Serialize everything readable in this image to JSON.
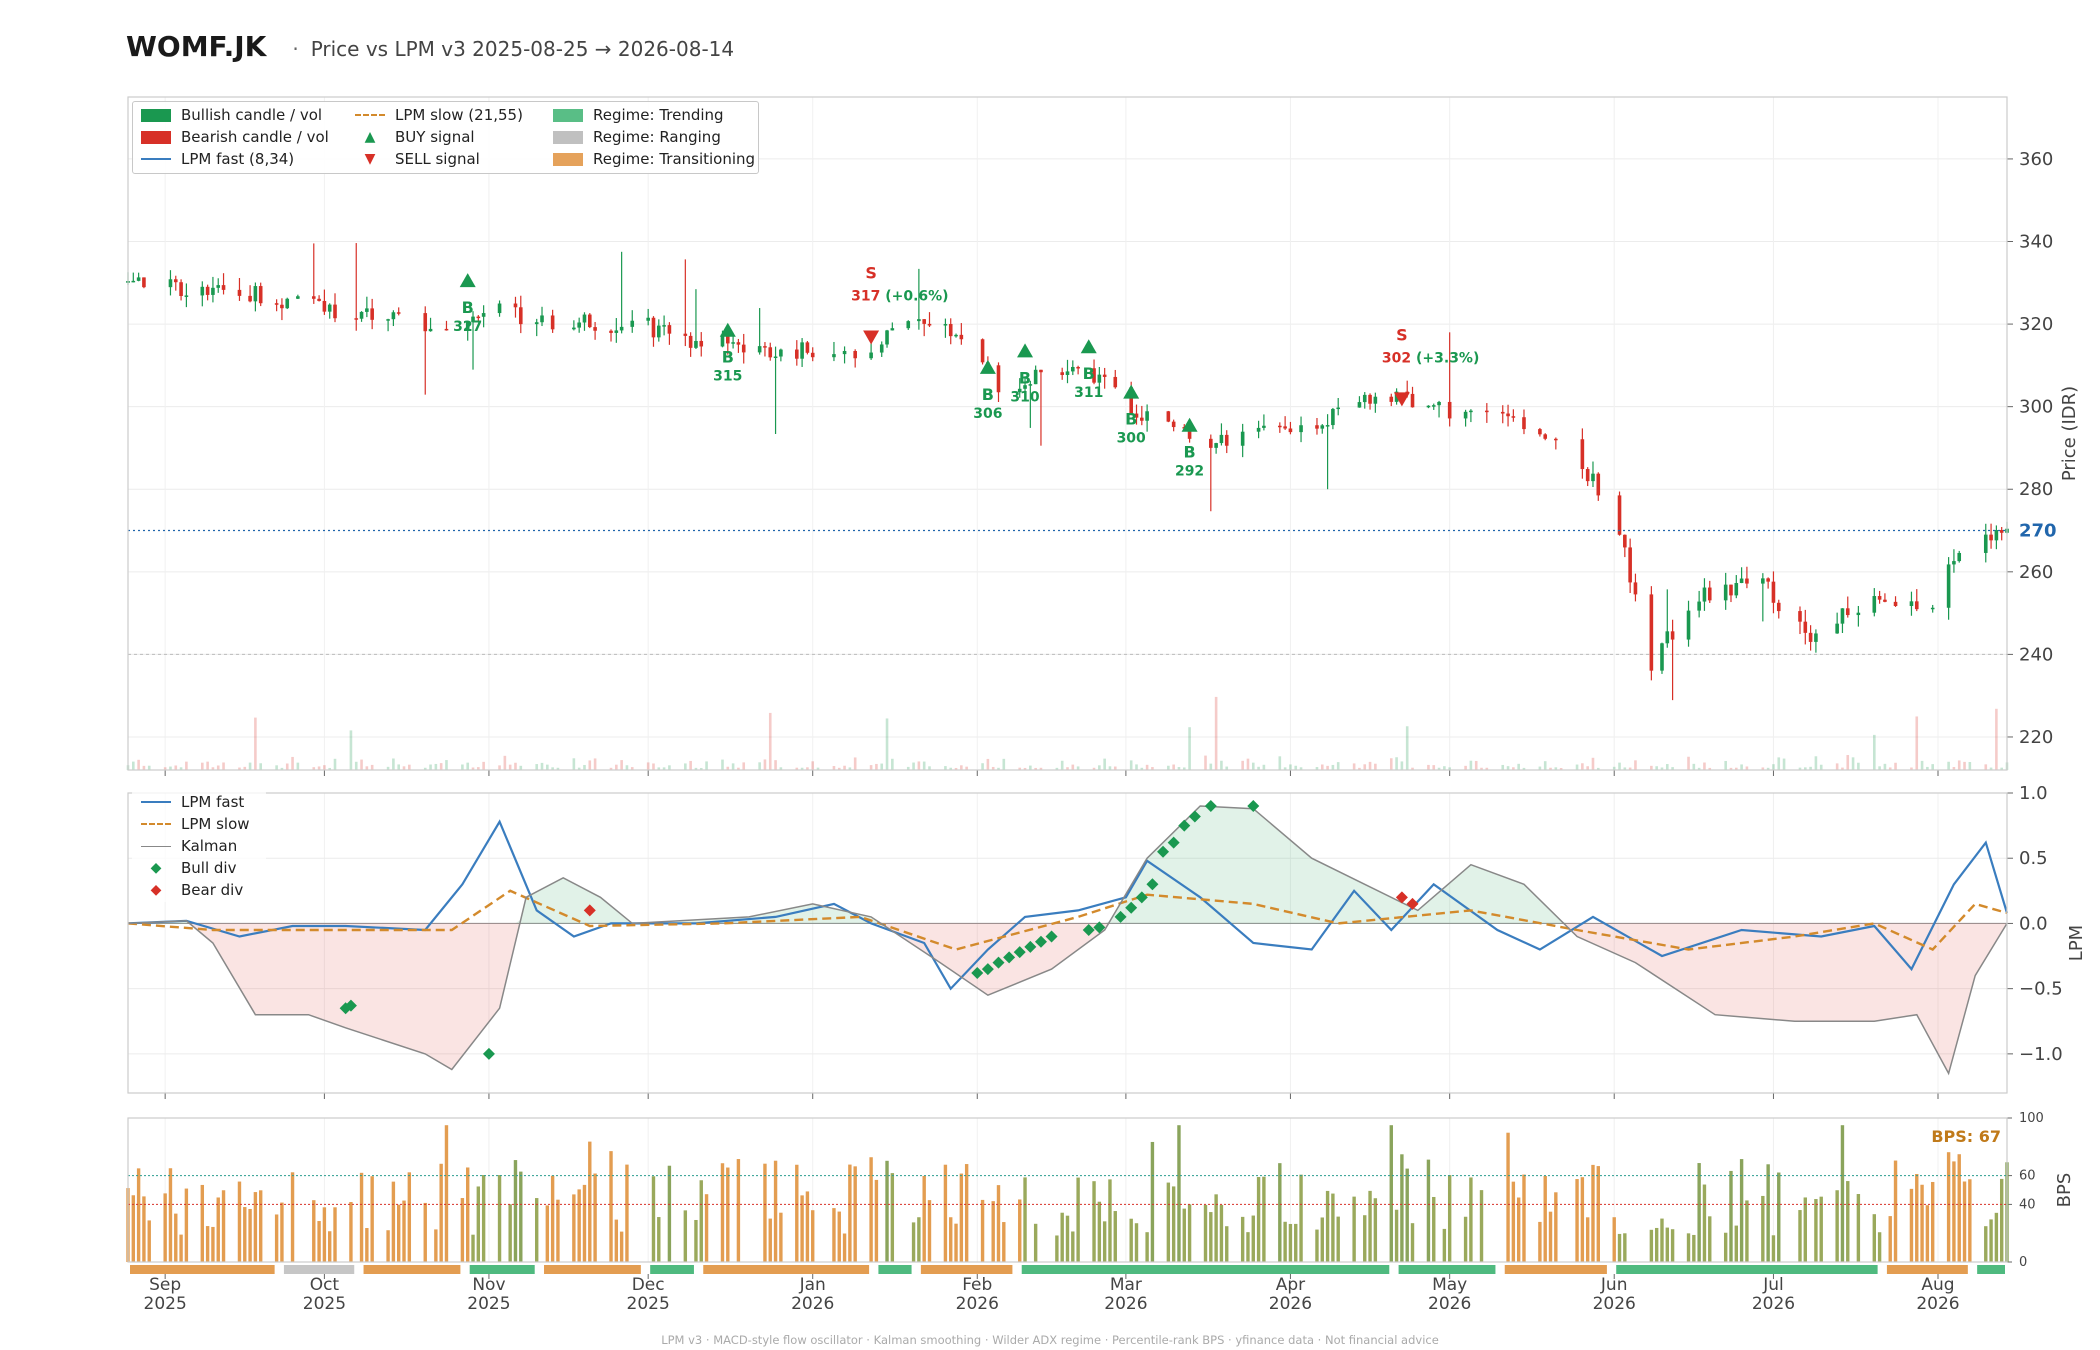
{
  "header": {
    "ticker": "WOMF.JK",
    "separator": "·",
    "subtitle": "Price vs LPM v3  2025-08-25 → 2026-08-14"
  },
  "legend_price": {
    "bullish": "Bullish candle / vol",
    "bearish": "Bearish candle / vol",
    "lpm_fast": "LPM fast (8,34)",
    "lpm_slow": "LPM slow (21,55)",
    "buy": "BUY signal",
    "sell": "SELL signal",
    "trending": "Regime: Trending",
    "ranging": "Regime: Ranging",
    "transitioning": "Regime: Transitioning"
  },
  "legend_lpm": {
    "fast": "LPM fast",
    "slow": "LPM slow",
    "kalman": "Kalman",
    "bull_div": "Bull div",
    "bear_div": "Bear div"
  },
  "footer": "LPM v3  ·  MACD-style flow oscillator  ·  Kalman smoothing  ·  Wilder ADX regime  ·  Percentile-rank BPS  ·  yfinance data  ·  Not financial advice",
  "colors": {
    "bull": "#1a9850",
    "bear": "#d73027",
    "fast": "#3a7dbf",
    "slow": "#d38a2c",
    "kalman": "#888888",
    "trending": "#3cb371",
    "ranging": "#c0c0c0",
    "transitioning": "#e0923e",
    "bps_label": "#c07a1a",
    "last_price": "#2166ac"
  },
  "chart_data": [
    {
      "panel": "price",
      "type": "candlestick",
      "ylabel": "Price (IDR)",
      "ylim": [
        212,
        375
      ],
      "y_ticks": [
        220,
        240,
        260,
        280,
        300,
        320,
        340,
        360
      ],
      "x_range": [
        "2025-08-25",
        "2026-08-14"
      ],
      "x_ticks": [
        {
          "date": "2025-09-01",
          "label": [
            "Sep",
            "2025"
          ]
        },
        {
          "date": "2025-10-01",
          "label": [
            "Oct",
            "2025"
          ]
        },
        {
          "date": "2025-11-01",
          "label": [
            "Nov",
            "2025"
          ]
        },
        {
          "date": "2025-12-01",
          "label": [
            "Dec",
            "2025"
          ]
        },
        {
          "date": "2026-01-01",
          "label": [
            "Jan",
            "2026"
          ]
        },
        {
          "date": "2026-02-01",
          "label": [
            "Feb",
            "2026"
          ]
        },
        {
          "date": "2026-03-01",
          "label": [
            "Mar",
            "2026"
          ]
        },
        {
          "date": "2026-04-01",
          "label": [
            "Apr",
            "2026"
          ]
        },
        {
          "date": "2026-05-01",
          "label": [
            "May",
            "2026"
          ]
        },
        {
          "date": "2026-06-01",
          "label": [
            "Jun",
            "2026"
          ]
        },
        {
          "date": "2026-07-01",
          "label": [
            "Jul",
            "2026"
          ]
        },
        {
          "date": "2026-08-01",
          "label": [
            "Aug",
            "2026"
          ]
        }
      ],
      "last_price": 270,
      "close_path": [
        [
          "2025-08-25",
          330
        ],
        [
          "2025-09-05",
          328
        ],
        [
          "2025-09-20",
          327
        ],
        [
          "2025-10-05",
          323
        ],
        [
          "2025-10-20",
          320
        ],
        [
          "2025-11-01",
          323
        ],
        [
          "2025-11-15",
          320
        ],
        [
          "2025-11-30",
          320
        ],
        [
          "2025-12-10",
          316
        ],
        [
          "2025-12-25",
          313
        ],
        [
          "2026-01-10",
          314
        ],
        [
          "2026-01-20",
          319
        ],
        [
          "2026-01-27",
          318
        ],
        [
          "2026-02-05",
          305
        ],
        [
          "2026-02-15",
          309
        ],
        [
          "2026-02-25",
          305
        ],
        [
          "2026-03-05",
          298
        ],
        [
          "2026-03-15",
          291
        ],
        [
          "2026-03-25",
          293
        ],
        [
          "2026-04-05",
          294
        ],
        [
          "2026-04-15",
          303
        ],
        [
          "2026-04-25",
          300
        ],
        [
          "2026-05-05",
          298
        ],
        [
          "2026-05-15",
          297
        ],
        [
          "2026-05-25",
          288
        ],
        [
          "2026-06-01",
          275
        ],
        [
          "2026-06-08",
          238
        ],
        [
          "2026-06-18",
          255
        ],
        [
          "2026-06-28",
          258
        ],
        [
          "2026-07-08",
          244
        ],
        [
          "2026-07-20",
          254
        ],
        [
          "2026-07-31",
          253
        ],
        [
          "2026-08-01",
          263
        ],
        [
          "2026-08-14",
          270
        ]
      ],
      "buy_signals": [
        {
          "date": "2025-10-28",
          "price": 327
        },
        {
          "date": "2025-12-16",
          "price": 315
        },
        {
          "date": "2026-02-03",
          "price": 306
        },
        {
          "date": "2026-02-10",
          "price": 310
        },
        {
          "date": "2026-02-22",
          "price": 311
        },
        {
          "date": "2026-03-02",
          "price": 300
        },
        {
          "date": "2026-03-13",
          "price": 292
        }
      ],
      "sell_signals": [
        {
          "date": "2026-01-12",
          "price": 317,
          "gain": "(+0.6%)"
        },
        {
          "date": "2026-04-22",
          "price": 302,
          "gain": "(+3.3%)"
        }
      ]
    },
    {
      "panel": "lpm",
      "type": "line",
      "ylabel": "LPM",
      "ylim": [
        -1.3,
        1.0
      ],
      "y_ticks": [
        -1.0,
        -0.5,
        0.0,
        0.5,
        1.0
      ],
      "series": [
        {
          "name": "LPM fast",
          "points": [
            [
              "2025-08-25",
              0.0
            ],
            [
              "2025-09-05",
              0.02
            ],
            [
              "2025-09-15",
              -0.1
            ],
            [
              "2025-09-25",
              -0.02
            ],
            [
              "2025-10-05",
              -0.02
            ],
            [
              "2025-10-20",
              -0.05
            ],
            [
              "2025-10-27",
              0.3
            ],
            [
              "2025-11-03",
              0.78
            ],
            [
              "2025-11-10",
              0.1
            ],
            [
              "2025-11-17",
              -0.1
            ],
            [
              "2025-11-24",
              0.0
            ],
            [
              "2025-12-10",
              0.0
            ],
            [
              "2025-12-25",
              0.05
            ],
            [
              "2026-01-05",
              0.15
            ],
            [
              "2026-01-12",
              0.0
            ],
            [
              "2026-01-22",
              -0.15
            ],
            [
              "2026-01-27",
              -0.5
            ],
            [
              "2026-02-03",
              -0.2
            ],
            [
              "2026-02-10",
              0.05
            ],
            [
              "2026-02-20",
              0.1
            ],
            [
              "2026-03-01",
              0.2
            ],
            [
              "2026-03-05",
              0.48
            ],
            [
              "2026-03-15",
              0.2
            ],
            [
              "2026-03-25",
              -0.15
            ],
            [
              "2026-04-05",
              -0.2
            ],
            [
              "2026-04-13",
              0.25
            ],
            [
              "2026-04-20",
              -0.05
            ],
            [
              "2026-04-28",
              0.3
            ],
            [
              "2026-05-10",
              -0.05
            ],
            [
              "2026-05-18",
              -0.2
            ],
            [
              "2026-05-28",
              0.05
            ],
            [
              "2026-06-10",
              -0.25
            ],
            [
              "2026-06-25",
              -0.05
            ],
            [
              "2026-07-10",
              -0.1
            ],
            [
              "2026-07-20",
              -0.02
            ],
            [
              "2026-07-27",
              -0.35
            ],
            [
              "2026-08-04",
              0.3
            ],
            [
              "2026-08-10",
              0.62
            ],
            [
              "2026-08-14",
              0.08
            ]
          ]
        },
        {
          "name": "LPM slow",
          "points": [
            [
              "2025-08-25",
              0.0
            ],
            [
              "2025-09-10",
              -0.05
            ],
            [
              "2025-10-05",
              -0.05
            ],
            [
              "2025-10-25",
              -0.05
            ],
            [
              "2025-11-05",
              0.25
            ],
            [
              "2025-11-20",
              -0.02
            ],
            [
              "2025-12-15",
              0.0
            ],
            [
              "2026-01-10",
              0.05
            ],
            [
              "2026-01-28",
              -0.2
            ],
            [
              "2026-02-20",
              0.05
            ],
            [
              "2026-03-05",
              0.22
            ],
            [
              "2026-03-25",
              0.15
            ],
            [
              "2026-04-10",
              0.0
            ],
            [
              "2026-05-05",
              0.1
            ],
            [
              "2026-05-25",
              -0.05
            ],
            [
              "2026-06-15",
              -0.2
            ],
            [
              "2026-07-05",
              -0.1
            ],
            [
              "2026-07-20",
              0.0
            ],
            [
              "2026-07-31",
              -0.2
            ],
            [
              "2026-08-08",
              0.15
            ],
            [
              "2026-08-14",
              0.08
            ]
          ]
        },
        {
          "name": "Kalman",
          "points": [
            [
              "2025-08-25",
              0.0
            ],
            [
              "2025-09-05",
              0.02
            ],
            [
              "2025-09-10",
              -0.15
            ],
            [
              "2025-09-18",
              -0.7
            ],
            [
              "2025-09-28",
              -0.7
            ],
            [
              "2025-10-05",
              -0.8
            ],
            [
              "2025-10-20",
              -1.0
            ],
            [
              "2025-10-25",
              -1.12
            ],
            [
              "2025-11-03",
              -0.65
            ],
            [
              "2025-11-08",
              0.2
            ],
            [
              "2025-11-15",
              0.35
            ],
            [
              "2025-11-22",
              0.2
            ],
            [
              "2025-11-28",
              0.0
            ],
            [
              "2025-12-20",
              0.05
            ],
            [
              "2026-01-01",
              0.15
            ],
            [
              "2026-01-12",
              0.05
            ],
            [
              "2026-01-25",
              -0.3
            ],
            [
              "2026-02-03",
              -0.55
            ],
            [
              "2026-02-15",
              -0.35
            ],
            [
              "2026-02-25",
              -0.05
            ],
            [
              "2026-03-05",
              0.5
            ],
            [
              "2026-03-15",
              0.9
            ],
            [
              "2026-03-25",
              0.88
            ],
            [
              "2026-04-05",
              0.5
            ],
            [
              "2026-04-15",
              0.3
            ],
            [
              "2026-04-25",
              0.1
            ],
            [
              "2026-05-05",
              0.45
            ],
            [
              "2026-05-15",
              0.3
            ],
            [
              "2026-05-25",
              -0.1
            ],
            [
              "2026-06-05",
              -0.3
            ],
            [
              "2026-06-20",
              -0.7
            ],
            [
              "2026-07-05",
              -0.75
            ],
            [
              "2026-07-20",
              -0.75
            ],
            [
              "2026-07-28",
              -0.7
            ],
            [
              "2026-08-03",
              -1.15
            ],
            [
              "2026-08-08",
              -0.4
            ],
            [
              "2026-08-14",
              0.0
            ]
          ]
        }
      ],
      "bull_div": [
        [
          "2025-10-05",
          -0.65
        ],
        [
          "2025-10-06",
          -0.63
        ],
        [
          "2025-11-01",
          -1.0
        ],
        [
          "2026-02-01",
          -0.38
        ],
        [
          "2026-02-03",
          -0.35
        ],
        [
          "2026-02-05",
          -0.3
        ],
        [
          "2026-02-07",
          -0.26
        ],
        [
          "2026-02-09",
          -0.22
        ],
        [
          "2026-02-11",
          -0.18
        ],
        [
          "2026-02-13",
          -0.14
        ],
        [
          "2026-02-15",
          -0.1
        ],
        [
          "2026-02-22",
          -0.05
        ],
        [
          "2026-02-24",
          -0.03
        ],
        [
          "2026-02-28",
          0.05
        ],
        [
          "2026-03-02",
          0.12
        ],
        [
          "2026-03-04",
          0.2
        ],
        [
          "2026-03-06",
          0.3
        ],
        [
          "2026-03-08",
          0.55
        ],
        [
          "2026-03-10",
          0.62
        ],
        [
          "2026-03-12",
          0.75
        ],
        [
          "2026-03-14",
          0.82
        ],
        [
          "2026-03-17",
          0.9
        ],
        [
          "2026-03-25",
          0.9
        ]
      ],
      "bear_div": [
        [
          "2025-11-20",
          0.1
        ],
        [
          "2026-04-22",
          0.2
        ],
        [
          "2026-04-24",
          0.15
        ]
      ]
    },
    {
      "panel": "bps",
      "type": "bar",
      "ylabel": "BPS",
      "ylim": [
        0,
        100
      ],
      "y_ticks": [
        0,
        40,
        60,
        100
      ],
      "thresholds": [
        40,
        60
      ],
      "current": "BPS: 67",
      "regime_bands": [
        {
          "start": "2025-08-25",
          "end": "2025-09-22",
          "regime": "transitioning"
        },
        {
          "start": "2025-09-23",
          "end": "2025-10-07",
          "regime": "ranging"
        },
        {
          "start": "2025-10-08",
          "end": "2025-10-27",
          "regime": "transitioning"
        },
        {
          "start": "2025-10-28",
          "end": "2025-11-10",
          "regime": "trending"
        },
        {
          "start": "2025-11-11",
          "end": "2025-11-30",
          "regime": "transitioning"
        },
        {
          "start": "2025-12-01",
          "end": "2025-12-10",
          "regime": "trending"
        },
        {
          "start": "2025-12-11",
          "end": "2026-01-12",
          "regime": "transitioning"
        },
        {
          "start": "2026-01-13",
          "end": "2026-01-20",
          "regime": "trending"
        },
        {
          "start": "2026-01-21",
          "end": "2026-02-08",
          "regime": "transitioning"
        },
        {
          "start": "2026-02-09",
          "end": "2026-04-20",
          "regime": "trending"
        },
        {
          "start": "2026-04-21",
          "end": "2026-05-10",
          "regime": "trending"
        },
        {
          "start": "2026-05-11",
          "end": "2026-05-31",
          "regime": "transitioning"
        },
        {
          "start": "2026-06-01",
          "end": "2026-07-21",
          "regime": "trending"
        },
        {
          "start": "2026-07-22",
          "end": "2026-08-07",
          "regime": "transitioning"
        },
        {
          "start": "2026-08-08",
          "end": "2026-08-14",
          "regime": "trending"
        }
      ]
    }
  ]
}
